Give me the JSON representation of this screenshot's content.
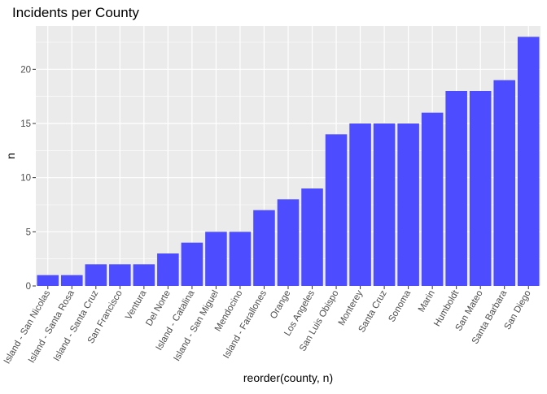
{
  "chart_data": {
    "type": "bar",
    "title": "Incidents per County",
    "xlabel": "reorder(county, n)",
    "ylabel": "n",
    "categories": [
      "Island - San Nicolas",
      "Island - Santa Rosa",
      "Island - Santa Cruz",
      "San Francisco",
      "Ventura",
      "Del Norte",
      "Island - Catalina",
      "Island - San Miguel",
      "Mendocino",
      "Island - Farallones",
      "Orange",
      "Los Angeles",
      "San Luis Obispo",
      "Monterey",
      "Santa Cruz",
      "Sonoma",
      "Marin",
      "Humboldt",
      "San Mateo",
      "Santa Barbara",
      "San Diego"
    ],
    "values": [
      1,
      1,
      2,
      2,
      2,
      3,
      4,
      5,
      5,
      7,
      8,
      9,
      14,
      15,
      15,
      15,
      16,
      18,
      18,
      19,
      23
    ],
    "ylim": [
      0,
      24
    ],
    "yticks": [
      0,
      5,
      10,
      15,
      20
    ],
    "grid": true,
    "bar_color": "#4d4dff",
    "panel_color": "#ebebeb"
  }
}
